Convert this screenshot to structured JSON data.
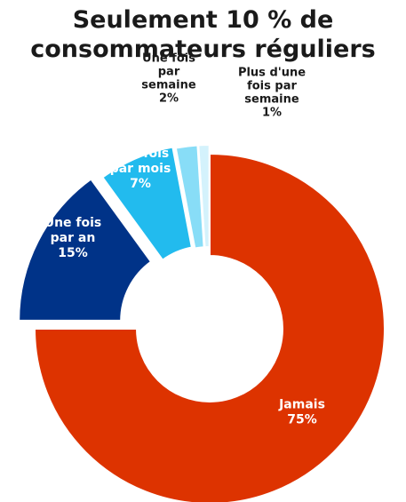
{
  "chart_data": {
    "type": "pie",
    "title_line1": "Seulement 10 % de",
    "title_line2": "consommateurs réguliers",
    "slices": [
      {
        "label_lines": [
          "Jamais",
          "75%"
        ],
        "value": 75,
        "color": "#dd3300",
        "text_color": "#ffffff"
      },
      {
        "label_lines": [
          "Une fois",
          "par an",
          "15%"
        ],
        "value": 15,
        "color": "#003388",
        "text_color": "#ffffff"
      },
      {
        "label_lines": [
          "Une fois",
          "par mois",
          "7%"
        ],
        "value": 7,
        "color": "#22bbee",
        "text_color": "#ffffff"
      },
      {
        "label_lines": [
          "Une fois",
          "par",
          "semaine",
          "2%"
        ],
        "value": 2,
        "color": "#88ddf7",
        "text_color": "#1a1a1a"
      },
      {
        "label_lines": [
          "Plus d'une",
          "fois par",
          "semaine",
          "1%"
        ],
        "value": 1,
        "color": "#d4f2fc",
        "text_color": "#1a1a1a"
      }
    ]
  }
}
